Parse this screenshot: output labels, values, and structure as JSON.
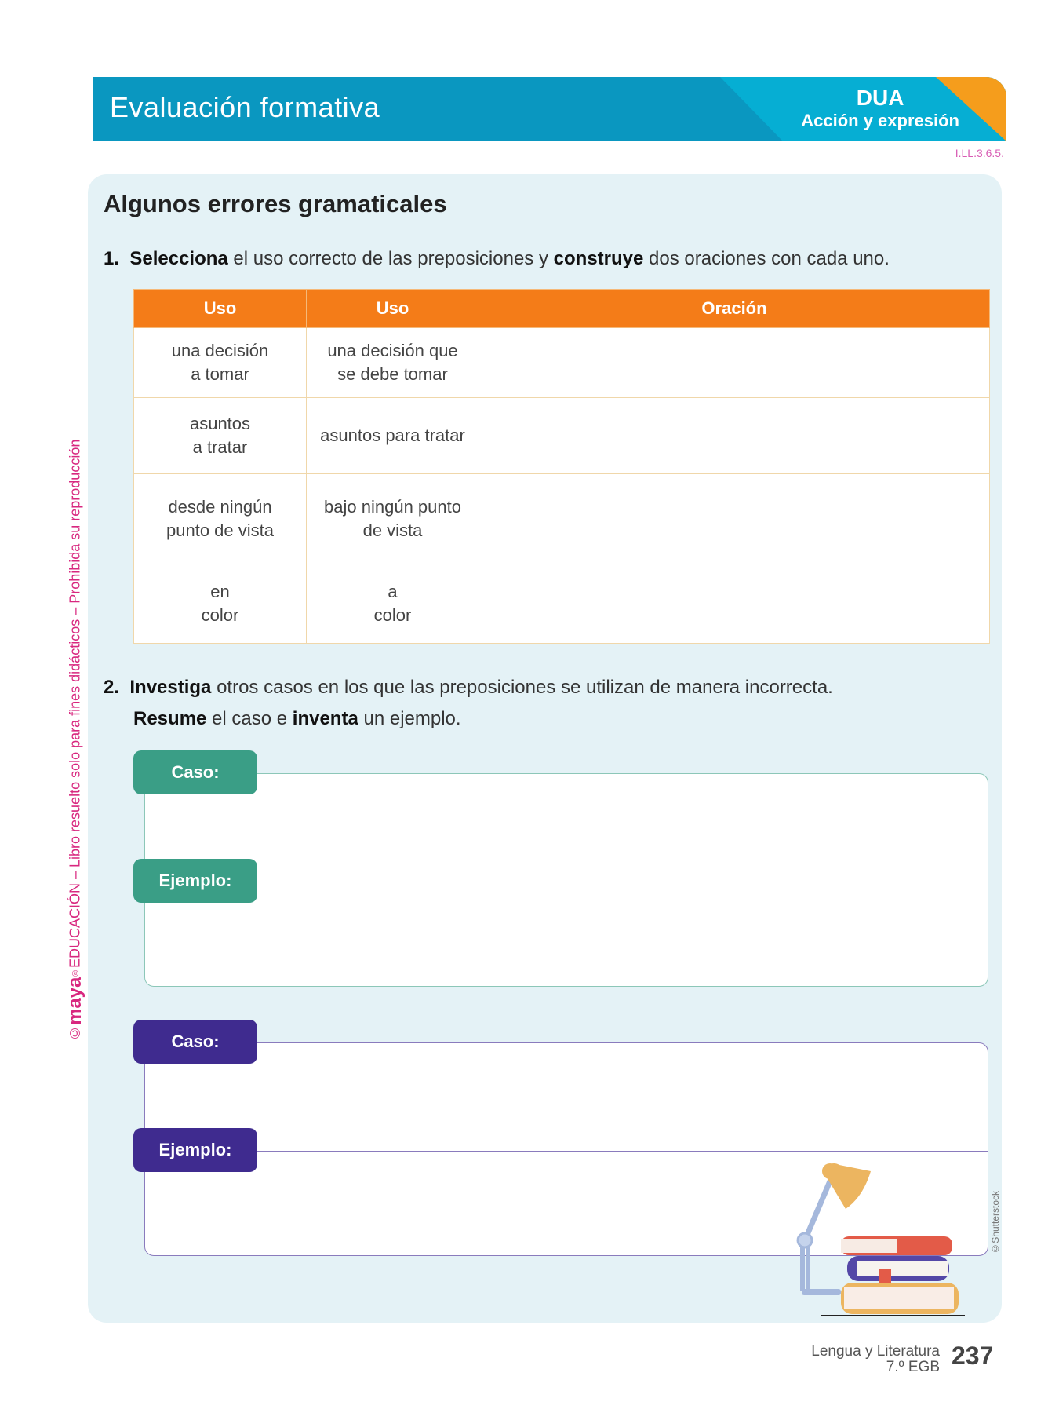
{
  "header": {
    "title": "Evaluación formativa",
    "dua_title": "DUA",
    "dua_subtitle": "Acción y expresión",
    "code": "I.LL.3.6.5.",
    "colors": {
      "main": "#0a97c0",
      "light": "#06aed3",
      "accent": "#f59d1c"
    }
  },
  "section": {
    "title": "Algunos errores gramaticales"
  },
  "q1": {
    "number": "1.",
    "verb1": "Selecciona",
    "text1": " el uso correcto de las preposiciones y ",
    "verb2": "construye",
    "text2": " dos oraciones con cada uno."
  },
  "table": {
    "headers": [
      "Uso",
      "Uso",
      "Oración"
    ],
    "rows": [
      {
        "a": "una decisión\na tomar",
        "b": "una decisión que\nse debe tomar",
        "c": ""
      },
      {
        "a": "asuntos\na tratar",
        "b": "asuntos para tratar",
        "c": ""
      },
      {
        "a": "desde ningún\npunto de vista",
        "b": "bajo ningún punto\nde vista",
        "c": ""
      },
      {
        "a": "en\ncolor",
        "b": "a\ncolor",
        "c": ""
      }
    ],
    "header_color": "#f47c18"
  },
  "q2": {
    "number": "2.",
    "verb1": "Investiga",
    "text1": " otros casos en los que las preposiciones se utilizan de manera incorrecta.",
    "verb2": "Resume",
    "text2": " el caso e ",
    "verb3": "inventa",
    "text3": " un ejemplo."
  },
  "cards": [
    {
      "case_label": "Caso:",
      "example_label": "Ejemplo:",
      "color": "#3a9e86"
    },
    {
      "case_label": "Caso:",
      "example_label": "Ejemplo:",
      "color": "#3f2b8f"
    }
  ],
  "sidebar": {
    "copyright": "©",
    "brand": "maya",
    "registered": "®",
    "text": "EDUCACIÓN – Libro resuelto solo para fines didácticos – Prohibida su reproducción"
  },
  "illustration": {
    "credit": "©Shutterstock",
    "icons": [
      "desk-lamp-icon",
      "book-stack-icon"
    ]
  },
  "footer": {
    "subject": "Lengua y Literatura",
    "grade": "7.º EGB",
    "page": "237"
  }
}
